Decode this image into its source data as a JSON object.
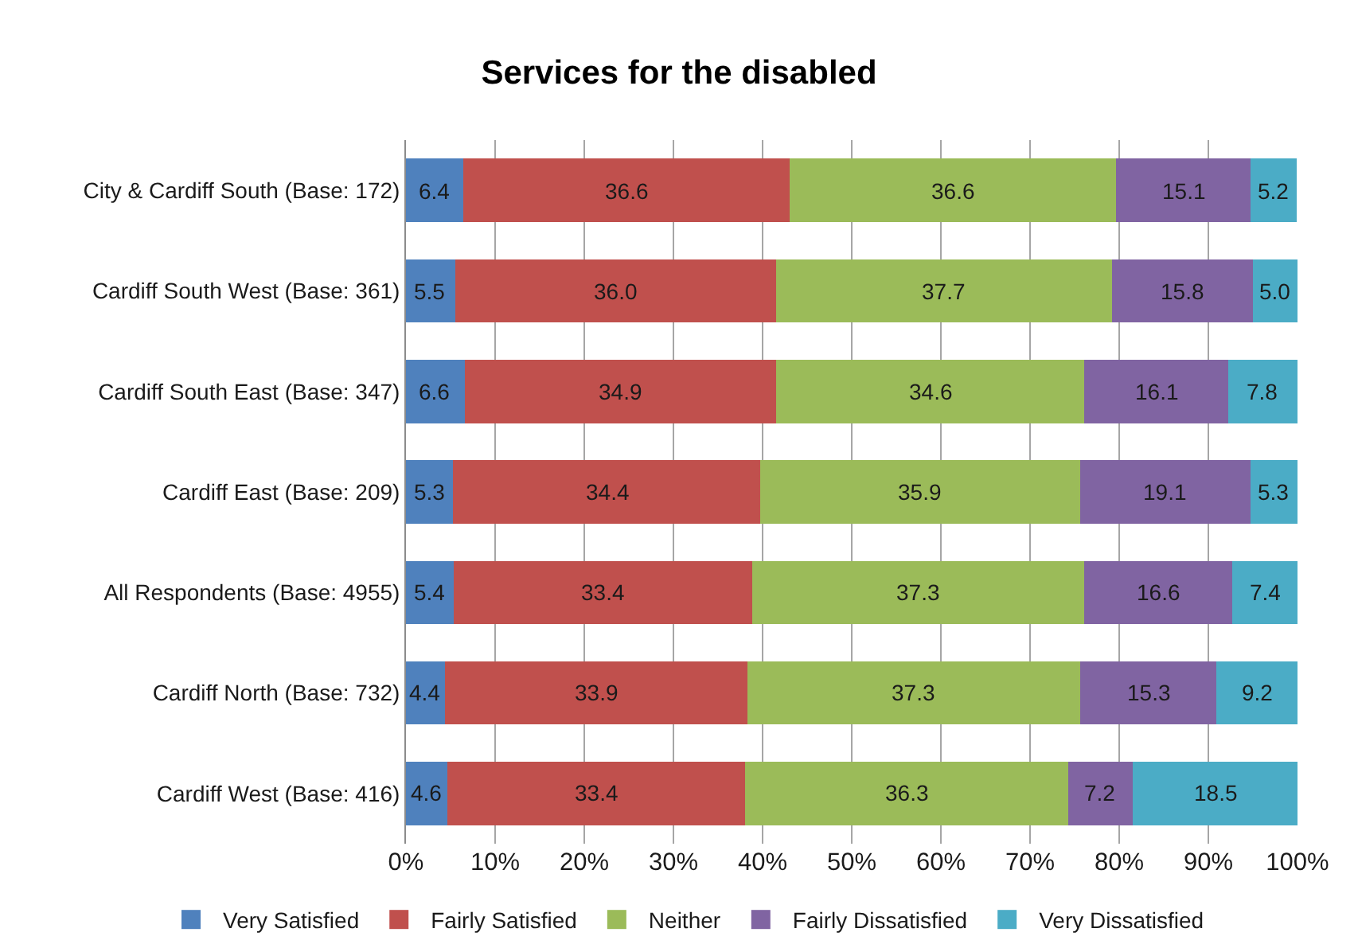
{
  "chart_data": {
    "type": "bar",
    "orientation": "horizontal",
    "stacked": true,
    "title": "Services for the disabled",
    "categories": [
      "City & Cardiff South (Base: 172)",
      "Cardiff South West (Base: 361)",
      "Cardiff South East (Base: 347)",
      "Cardiff East (Base: 209)",
      "All Respondents (Base: 4955)",
      "Cardiff North (Base: 732)",
      "Cardiff West (Base: 416)"
    ],
    "series": [
      {
        "name": "Very Satisfied",
        "color": "#4f81bd",
        "values": [
          6.4,
          5.5,
          6.6,
          5.3,
          5.4,
          4.4,
          4.6
        ],
        "value_labels": [
          "6.4",
          "5.5",
          "6.6",
          "5.3",
          "5.4",
          "4.4",
          "4.6"
        ]
      },
      {
        "name": "Fairly Satisfied",
        "color": "#c0504d",
        "values": [
          36.6,
          36.0,
          34.9,
          34.4,
          33.4,
          33.9,
          33.4
        ],
        "value_labels": [
          "36.6",
          "36.0",
          "34.9",
          "34.4",
          "33.4",
          "33.9",
          "33.4"
        ]
      },
      {
        "name": "Neither",
        "color": "#9bbb59",
        "values": [
          36.6,
          37.7,
          34.6,
          35.9,
          37.3,
          37.3,
          36.3
        ],
        "value_labels": [
          "36.6",
          "37.7",
          "34.6",
          "35.9",
          "37.3",
          "37.3",
          "36.3"
        ]
      },
      {
        "name": "Fairly Dissatisfied",
        "color": "#8064a2",
        "values": [
          15.1,
          15.8,
          16.1,
          19.1,
          16.6,
          15.3,
          7.2
        ],
        "value_labels": [
          "15.1",
          "15.8",
          "16.1",
          "19.1",
          "16.6",
          "15.3",
          "7.2"
        ]
      },
      {
        "name": "Very Dissatisfied",
        "color": "#4bacc6",
        "values": [
          5.2,
          5.0,
          7.8,
          5.3,
          7.4,
          9.2,
          18.5
        ],
        "value_labels": [
          "5.2",
          "5.0",
          "7.8",
          "5.3",
          "7.4",
          "9.2",
          "18.5"
        ]
      }
    ],
    "xlim": [
      0,
      100
    ],
    "xticks": [
      {
        "value": 0,
        "label": "0%"
      },
      {
        "value": 10,
        "label": "10%"
      },
      {
        "value": 20,
        "label": "20%"
      },
      {
        "value": 30,
        "label": "30%"
      },
      {
        "value": 40,
        "label": "40%"
      },
      {
        "value": 50,
        "label": "50%"
      },
      {
        "value": 60,
        "label": "60%"
      },
      {
        "value": 70,
        "label": "70%"
      },
      {
        "value": 80,
        "label": "80%"
      },
      {
        "value": 90,
        "label": "90%"
      },
      {
        "value": 100,
        "label": "100%"
      }
    ],
    "grid": "x",
    "legend": "bottom"
  }
}
